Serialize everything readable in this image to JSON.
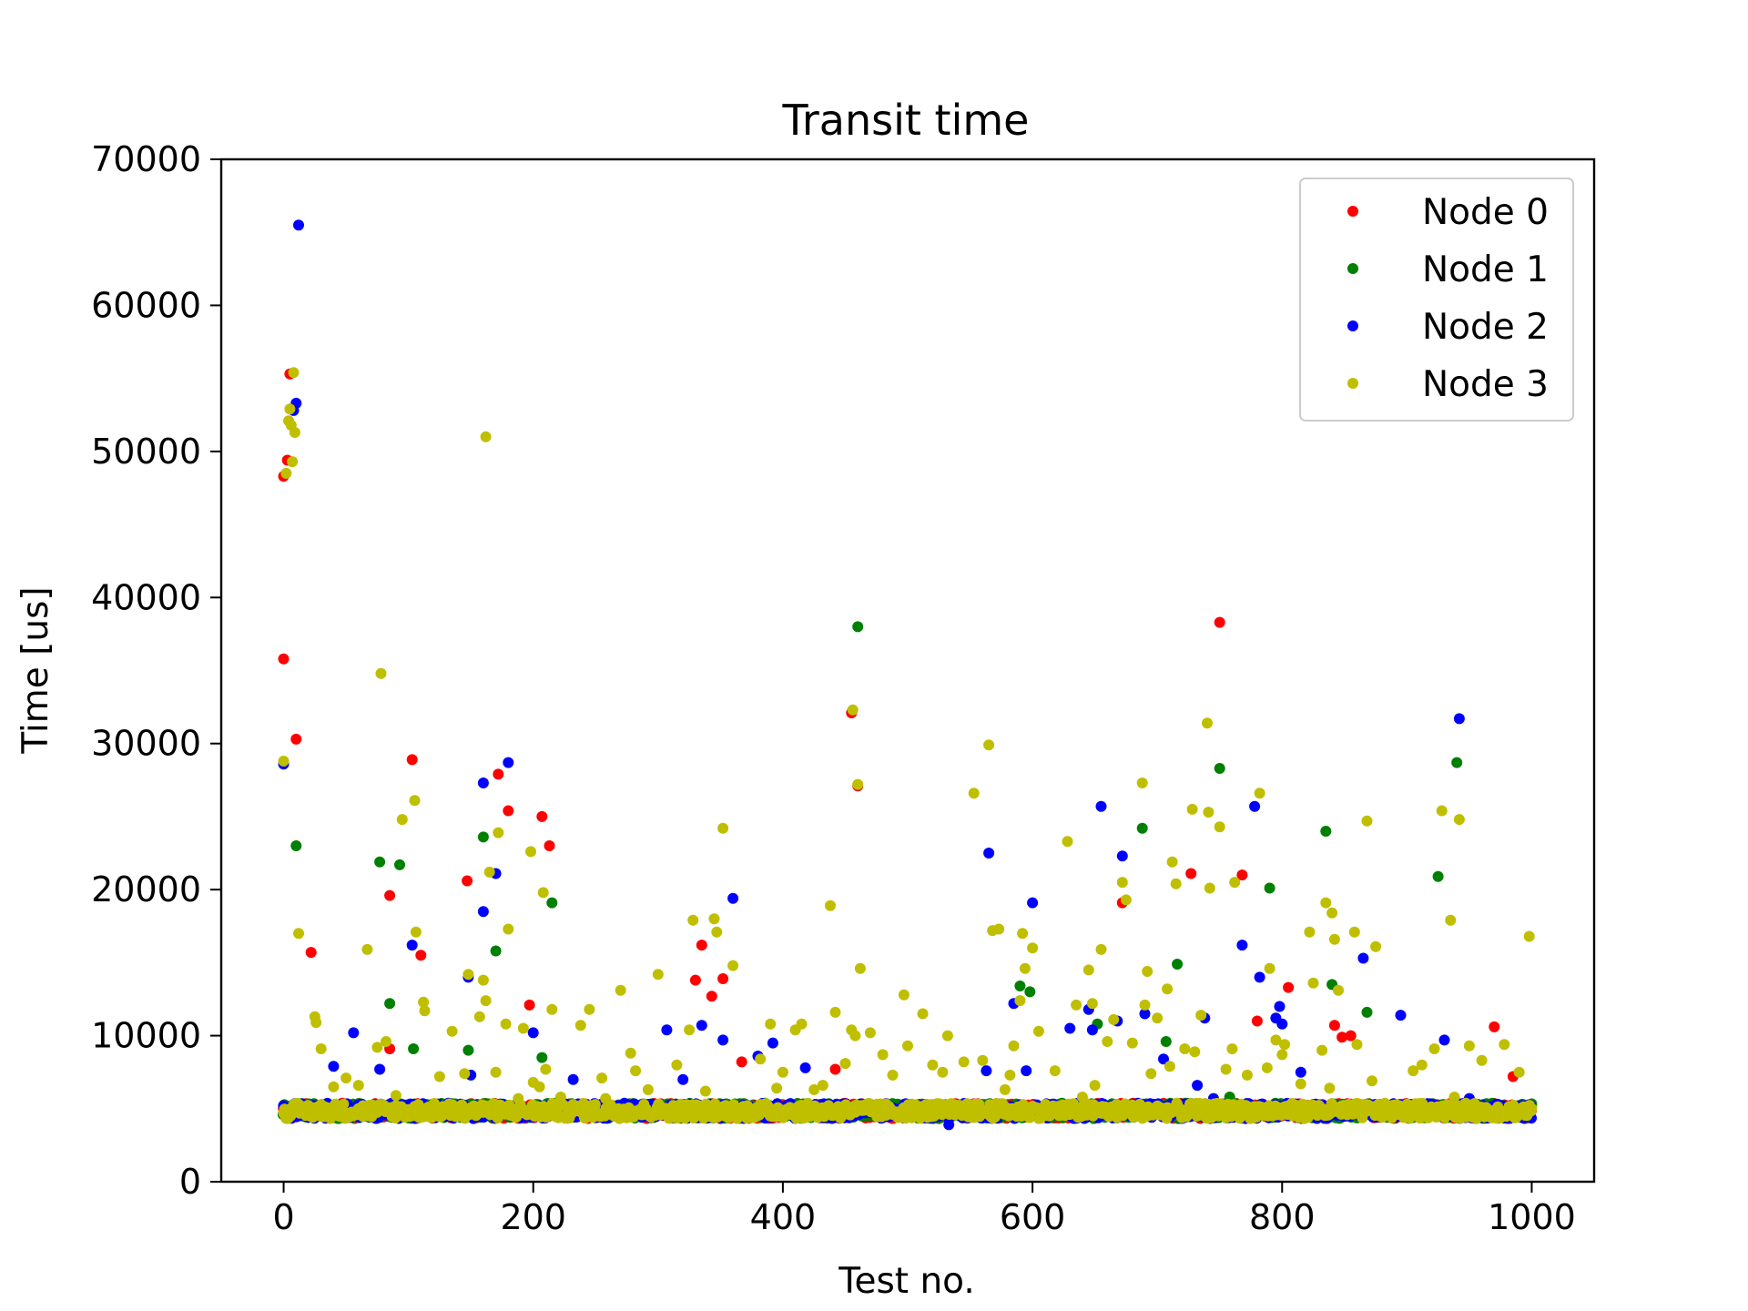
{
  "chart_data": {
    "type": "scatter",
    "title": "Transit time",
    "xlabel": "Test no.",
    "ylabel": "Time [us]",
    "xlim": [
      -50,
      1050
    ],
    "ylim": [
      0,
      70000
    ],
    "x_ticks": [
      0,
      200,
      400,
      600,
      800,
      1000
    ],
    "y_ticks": [
      0,
      10000,
      20000,
      30000,
      40000,
      50000,
      60000,
      70000
    ],
    "x_tick_labels": [
      "0",
      "200",
      "400",
      "600",
      "800",
      "1000"
    ],
    "y_tick_labels": [
      "0",
      "10000",
      "20000",
      "30000",
      "40000",
      "50000",
      "60000",
      "70000"
    ],
    "grid": false,
    "legend_position": "top-right",
    "series": [
      {
        "name": "Node 0",
        "color": "#ff0000",
        "points": [
          [
            0,
            35800
          ],
          [
            0,
            48300
          ],
          [
            3,
            49400
          ],
          [
            5,
            55300
          ],
          [
            10,
            30300
          ],
          [
            22,
            15700
          ],
          [
            85,
            19600
          ],
          [
            85,
            9100
          ],
          [
            103,
            28900
          ],
          [
            110,
            15500
          ],
          [
            147,
            20600
          ],
          [
            172,
            27900
          ],
          [
            180,
            25400
          ],
          [
            197,
            12100
          ],
          [
            207,
            25000
          ],
          [
            213,
            23000
          ],
          [
            330,
            13800
          ],
          [
            335,
            16200
          ],
          [
            343,
            12700
          ],
          [
            352,
            13900
          ],
          [
            367,
            8200
          ],
          [
            442,
            7700
          ],
          [
            455,
            32100
          ],
          [
            460,
            27100
          ],
          [
            672,
            19100
          ],
          [
            727,
            21100
          ],
          [
            750,
            38300
          ],
          [
            768,
            21000
          ],
          [
            780,
            11000
          ],
          [
            805,
            13300
          ],
          [
            842,
            10700
          ],
          [
            848,
            9900
          ],
          [
            855,
            10000
          ],
          [
            970,
            10600
          ],
          [
            985,
            7200
          ]
        ]
      },
      {
        "name": "Node 1",
        "color": "#008000",
        "points": [
          [
            10,
            23000
          ],
          [
            77,
            21900
          ],
          [
            85,
            12200
          ],
          [
            93,
            21700
          ],
          [
            104,
            9100
          ],
          [
            148,
            9000
          ],
          [
            160,
            23600
          ],
          [
            170,
            15800
          ],
          [
            207,
            8500
          ],
          [
            215,
            19100
          ],
          [
            460,
            38000
          ],
          [
            590,
            13400
          ],
          [
            598,
            13000
          ],
          [
            652,
            10800
          ],
          [
            688,
            24200
          ],
          [
            707,
            9600
          ],
          [
            716,
            14900
          ],
          [
            750,
            28300
          ],
          [
            758,
            5800
          ],
          [
            790,
            20100
          ],
          [
            800,
            4700
          ],
          [
            835,
            24000
          ],
          [
            840,
            13500
          ],
          [
            868,
            11600
          ],
          [
            925,
            20900
          ],
          [
            940,
            28700
          ]
        ]
      },
      {
        "name": "Node 2",
        "color": "#0000ff",
        "points": [
          [
            0,
            28600
          ],
          [
            8,
            52800
          ],
          [
            10,
            53300
          ],
          [
            12,
            65500
          ],
          [
            40,
            7900
          ],
          [
            56,
            10200
          ],
          [
            77,
            7700
          ],
          [
            103,
            16200
          ],
          [
            148,
            14000
          ],
          [
            150,
            7300
          ],
          [
            160,
            27300
          ],
          [
            160,
            18500
          ],
          [
            170,
            21100
          ],
          [
            180,
            28700
          ],
          [
            200,
            10200
          ],
          [
            232,
            7000
          ],
          [
            307,
            10400
          ],
          [
            320,
            7000
          ],
          [
            335,
            10700
          ],
          [
            352,
            9700
          ],
          [
            360,
            19400
          ],
          [
            380,
            8600
          ],
          [
            392,
            9500
          ],
          [
            418,
            7800
          ],
          [
            533,
            3900
          ],
          [
            563,
            7600
          ],
          [
            565,
            22500
          ],
          [
            585,
            12200
          ],
          [
            595,
            7600
          ],
          [
            600,
            19100
          ],
          [
            630,
            10500
          ],
          [
            645,
            11800
          ],
          [
            648,
            10400
          ],
          [
            655,
            25700
          ],
          [
            668,
            11000
          ],
          [
            672,
            22300
          ],
          [
            690,
            11500
          ],
          [
            705,
            8400
          ],
          [
            732,
            6600
          ],
          [
            738,
            11200
          ],
          [
            745,
            5700
          ],
          [
            768,
            16200
          ],
          [
            778,
            25700
          ],
          [
            782,
            14000
          ],
          [
            795,
            11200
          ],
          [
            798,
            12000
          ],
          [
            800,
            10800
          ],
          [
            815,
            7500
          ],
          [
            865,
            15300
          ],
          [
            895,
            11400
          ],
          [
            930,
            9700
          ],
          [
            942,
            31700
          ],
          [
            950,
            5700
          ]
        ]
      },
      {
        "name": "Node 3",
        "color": "#bfbf00",
        "points": [
          [
            0,
            4700
          ],
          [
            0,
            28800
          ],
          [
            2,
            48500
          ],
          [
            4,
            52100
          ],
          [
            5,
            52900
          ],
          [
            6,
            51800
          ],
          [
            7,
            49300
          ],
          [
            8,
            55400
          ],
          [
            9,
            51300
          ],
          [
            12,
            17000
          ],
          [
            20,
            5200
          ],
          [
            25,
            11300
          ],
          [
            26,
            10900
          ],
          [
            30,
            9100
          ],
          [
            40,
            6500
          ],
          [
            50,
            7100
          ],
          [
            60,
            6600
          ],
          [
            67,
            15900
          ],
          [
            75,
            9200
          ],
          [
            78,
            34800
          ],
          [
            82,
            9600
          ],
          [
            90,
            5900
          ],
          [
            95,
            24800
          ],
          [
            105,
            26100
          ],
          [
            106,
            17100
          ],
          [
            112,
            12300
          ],
          [
            113,
            11700
          ],
          [
            125,
            7200
          ],
          [
            135,
            10300
          ],
          [
            145,
            7400
          ],
          [
            148,
            14200
          ],
          [
            157,
            11300
          ],
          [
            160,
            13800
          ],
          [
            162,
            12400
          ],
          [
            162,
            51000
          ],
          [
            165,
            21200
          ],
          [
            170,
            7500
          ],
          [
            172,
            23900
          ],
          [
            178,
            10800
          ],
          [
            180,
            17300
          ],
          [
            188,
            5700
          ],
          [
            192,
            10500
          ],
          [
            198,
            22600
          ],
          [
            200,
            6800
          ],
          [
            205,
            6500
          ],
          [
            208,
            19800
          ],
          [
            210,
            7700
          ],
          [
            215,
            11800
          ],
          [
            222,
            5800
          ],
          [
            238,
            10700
          ],
          [
            245,
            11800
          ],
          [
            255,
            7100
          ],
          [
            258,
            5700
          ],
          [
            270,
            13100
          ],
          [
            278,
            8800
          ],
          [
            282,
            7600
          ],
          [
            292,
            6300
          ],
          [
            300,
            14200
          ],
          [
            315,
            8000
          ],
          [
            325,
            10400
          ],
          [
            328,
            17900
          ],
          [
            338,
            6200
          ],
          [
            345,
            18000
          ],
          [
            347,
            17100
          ],
          [
            352,
            24200
          ],
          [
            360,
            14800
          ],
          [
            382,
            8400
          ],
          [
            390,
            10800
          ],
          [
            395,
            6400
          ],
          [
            400,
            7500
          ],
          [
            410,
            10400
          ],
          [
            415,
            10800
          ],
          [
            425,
            6300
          ],
          [
            432,
            6600
          ],
          [
            438,
            18900
          ],
          [
            442,
            11600
          ],
          [
            450,
            8100
          ],
          [
            455,
            10400
          ],
          [
            456,
            32300
          ],
          [
            458,
            10000
          ],
          [
            460,
            27200
          ],
          [
            462,
            14600
          ],
          [
            470,
            10200
          ],
          [
            480,
            8700
          ],
          [
            488,
            7300
          ],
          [
            497,
            12800
          ],
          [
            500,
            9300
          ],
          [
            512,
            11500
          ],
          [
            520,
            8000
          ],
          [
            528,
            7500
          ],
          [
            532,
            10000
          ],
          [
            545,
            8200
          ],
          [
            553,
            26600
          ],
          [
            560,
            8300
          ],
          [
            565,
            29900
          ],
          [
            568,
            17200
          ],
          [
            573,
            17300
          ],
          [
            578,
            6300
          ],
          [
            582,
            7300
          ],
          [
            585,
            9300
          ],
          [
            590,
            12400
          ],
          [
            592,
            17000
          ],
          [
            594,
            14600
          ],
          [
            600,
            16000
          ],
          [
            605,
            10300
          ],
          [
            618,
            7600
          ],
          [
            628,
            23300
          ],
          [
            635,
            12100
          ],
          [
            640,
            5800
          ],
          [
            645,
            14500
          ],
          [
            648,
            12200
          ],
          [
            650,
            6600
          ],
          [
            655,
            15900
          ],
          [
            660,
            9600
          ],
          [
            665,
            11100
          ],
          [
            672,
            20500
          ],
          [
            675,
            19300
          ],
          [
            680,
            9500
          ],
          [
            688,
            27300
          ],
          [
            690,
            12100
          ],
          [
            692,
            14400
          ],
          [
            695,
            7400
          ],
          [
            700,
            11200
          ],
          [
            708,
            13200
          ],
          [
            710,
            7900
          ],
          [
            712,
            21900
          ],
          [
            715,
            20400
          ],
          [
            722,
            9100
          ],
          [
            728,
            25500
          ],
          [
            730,
            8900
          ],
          [
            735,
            11400
          ],
          [
            740,
            31400
          ],
          [
            741,
            25300
          ],
          [
            742,
            20100
          ],
          [
            750,
            24300
          ],
          [
            755,
            7700
          ],
          [
            760,
            9100
          ],
          [
            762,
            20500
          ],
          [
            772,
            7300
          ],
          [
            782,
            26600
          ],
          [
            788,
            7800
          ],
          [
            790,
            14600
          ],
          [
            795,
            9700
          ],
          [
            800,
            8700
          ],
          [
            802,
            9400
          ],
          [
            815,
            6700
          ],
          [
            822,
            17100
          ],
          [
            825,
            13600
          ],
          [
            832,
            9000
          ],
          [
            835,
            19100
          ],
          [
            838,
            6400
          ],
          [
            840,
            18400
          ],
          [
            842,
            16600
          ],
          [
            845,
            13100
          ],
          [
            858,
            17100
          ],
          [
            860,
            9400
          ],
          [
            868,
            24700
          ],
          [
            872,
            6900
          ],
          [
            875,
            16100
          ],
          [
            905,
            7600
          ],
          [
            912,
            8000
          ],
          [
            922,
            9100
          ],
          [
            928,
            25400
          ],
          [
            935,
            17900
          ],
          [
            938,
            5800
          ],
          [
            942,
            24800
          ],
          [
            950,
            9300
          ],
          [
            960,
            8300
          ],
          [
            978,
            9400
          ],
          [
            990,
            7500
          ],
          [
            998,
            16800
          ]
        ]
      }
    ],
    "baseline_band": {
      "description_values": "dense cluster of points from every node",
      "x_range": [
        0,
        1000
      ],
      "y_range": [
        4100,
        5600
      ]
    }
  }
}
